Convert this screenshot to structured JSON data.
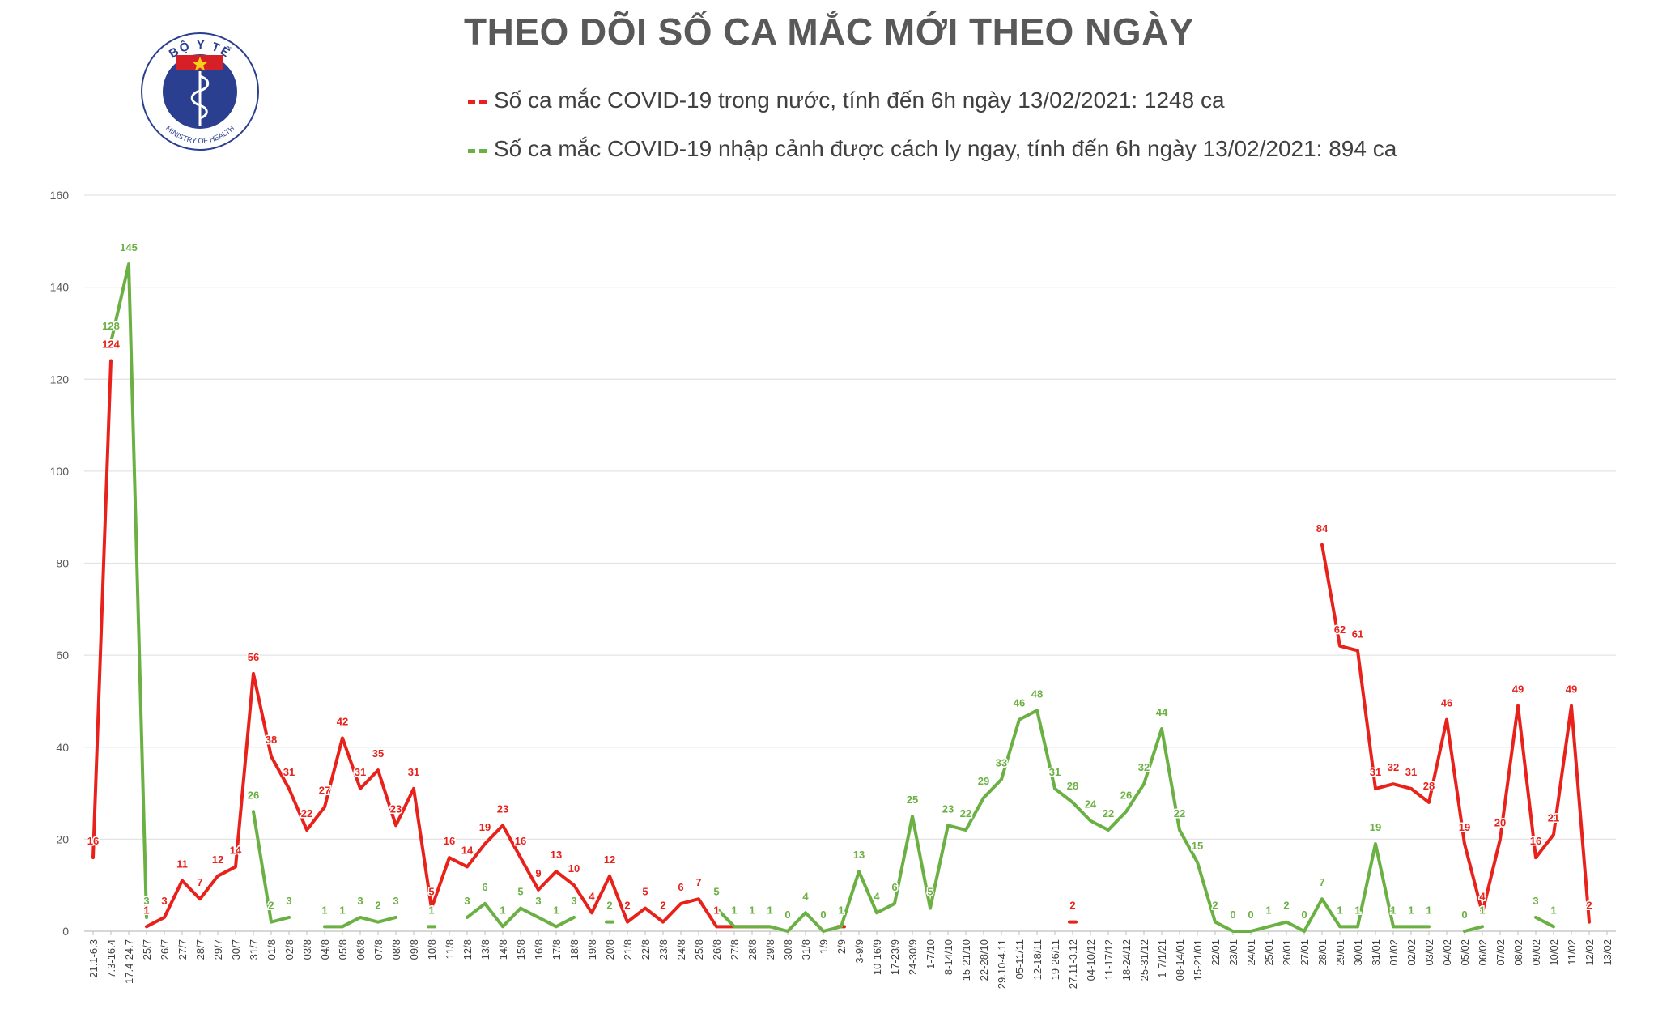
{
  "chart_data": {
    "type": "line",
    "title": "THEO DÕI SỐ CA MẮC MỚI THEO NGÀY",
    "xlabel": "",
    "ylabel": "",
    "ylim": [
      0,
      160
    ],
    "yticks": [
      0,
      20,
      40,
      60,
      80,
      100,
      120,
      140,
      160
    ],
    "grid": true,
    "legend_position": "top",
    "categories": [
      "21.1-6.3",
      "7.3-16.4",
      "17.4-24.7",
      "25/7",
      "26/7",
      "27/7",
      "28/7",
      "29/7",
      "30/7",
      "31/7",
      "01/8",
      "02/8",
      "03/8",
      "04/8",
      "05/8",
      "06/8",
      "07/8",
      "08/8",
      "09/8",
      "10/8",
      "11/8",
      "12/8",
      "13/8",
      "14/8",
      "15/8",
      "16/8",
      "17/8",
      "18/8",
      "19/8",
      "20/8",
      "21/8",
      "22/8",
      "23/8",
      "24/8",
      "25/8",
      "26/8",
      "27/8",
      "28/8",
      "29/8",
      "30/8",
      "31/8",
      "1/9",
      "2/9",
      "3-9/9",
      "10-16/9",
      "17-23/9",
      "24-30/9",
      "1-7/10",
      "8-14/10",
      "15-21/10",
      "22-28/10",
      "29.10-4.11",
      "05-11/11",
      "12-18/11",
      "19-26/11",
      "27.11-3.12",
      "04-10/12",
      "11-17/12",
      "18-24/12",
      "25-31/12",
      "1-7/1/21",
      "08-14/01",
      "15-21/01",
      "22/01",
      "23/01",
      "24/01",
      "25/01",
      "26/01",
      "27/01",
      "28/01",
      "29/01",
      "30/01",
      "31/01",
      "01/02",
      "02/02",
      "03/02",
      "04/02",
      "05/02",
      "06/02",
      "07/02",
      "08/02",
      "09/02",
      "10/02",
      "11/02",
      "12/02",
      "13/02"
    ],
    "series": [
      {
        "name": "Số ca mắc COVID-19 trong nước, tính đến 6h ngày 13/02/2021: 1248 ca",
        "color": "#e8211b",
        "values": [
          16,
          124,
          null,
          1,
          3,
          11,
          7,
          12,
          14,
          56,
          38,
          31,
          22,
          27,
          42,
          31,
          35,
          23,
          31,
          5,
          16,
          14,
          19,
          23,
          16,
          9,
          13,
          10,
          4,
          12,
          2,
          5,
          2,
          6,
          7,
          1,
          1,
          1,
          1,
          null,
          null,
          null,
          1,
          null,
          null,
          null,
          null,
          null,
          null,
          null,
          null,
          null,
          null,
          null,
          null,
          2,
          null,
          null,
          null,
          null,
          null,
          null,
          null,
          null,
          null,
          null,
          null,
          null,
          null,
          84,
          62,
          61,
          31,
          32,
          31,
          28,
          46,
          19,
          4,
          20,
          49,
          16,
          21,
          49,
          2,
          null
        ]
      },
      {
        "name": "Số ca mắc COVID-19 nhập cảnh được cách ly ngay, tính đến 6h ngày 13/02/2021: 894 ca",
        "color": "#6ab042",
        "values": [
          null,
          128,
          145,
          3,
          null,
          null,
          null,
          null,
          null,
          26,
          2,
          3,
          null,
          1,
          1,
          3,
          2,
          3,
          null,
          1,
          null,
          3,
          6,
          1,
          5,
          3,
          1,
          3,
          null,
          2,
          null,
          null,
          null,
          null,
          null,
          5,
          1,
          1,
          1,
          0,
          4,
          0,
          1,
          13,
          4,
          6,
          25,
          5,
          23,
          22,
          29,
          33,
          46,
          48,
          31,
          28,
          24,
          22,
          26,
          32,
          44,
          22,
          15,
          2,
          0,
          0,
          1,
          2,
          0,
          7,
          1,
          1,
          19,
          1,
          1,
          1,
          null,
          0,
          1,
          null,
          null,
          3,
          1,
          null,
          null,
          null
        ]
      }
    ]
  },
  "logo": {
    "top_text": "BỘ Y TẾ",
    "bottom_text": "MINISTRY OF HEALTH"
  }
}
